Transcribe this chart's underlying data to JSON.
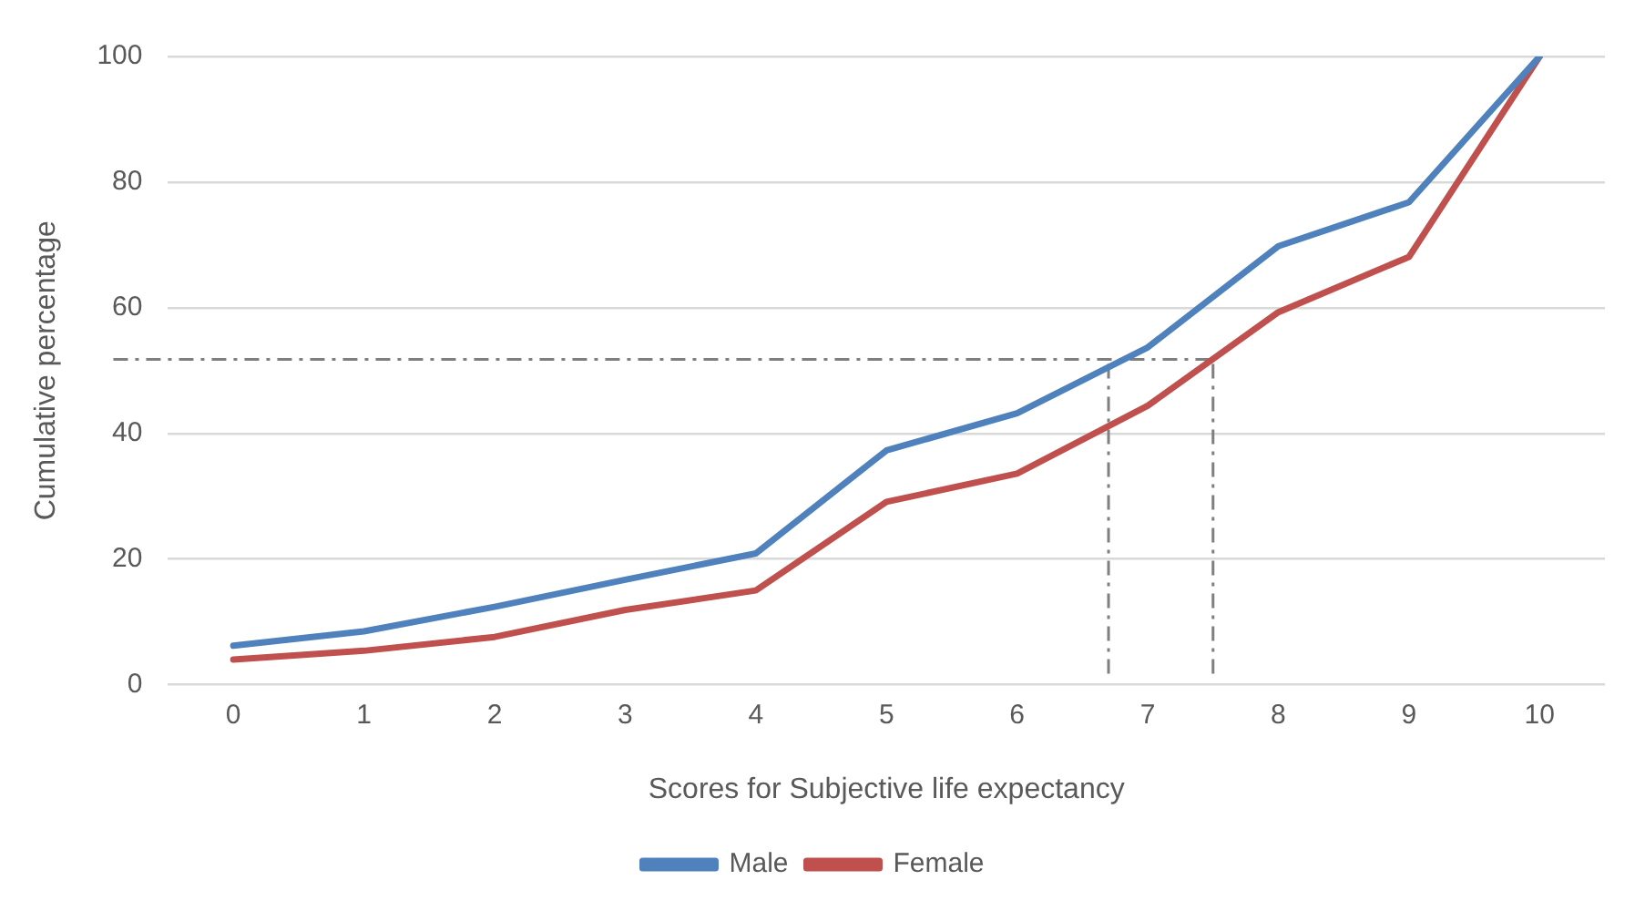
{
  "chart_data": {
    "type": "line",
    "xlabel": "Scores for Subjective life expectancy",
    "ylabel": "Cumulative percentage",
    "x": [
      0,
      1,
      2,
      3,
      4,
      5,
      6,
      7,
      8,
      9,
      10
    ],
    "xlim": [
      -0.5,
      10.5
    ],
    "xticks": [
      0,
      1,
      2,
      3,
      4,
      5,
      6,
      7,
      8,
      9,
      10
    ],
    "ylim": [
      0,
      100
    ],
    "yticks": [
      0,
      20,
      40,
      60,
      80,
      100
    ],
    "grid": "y",
    "legend": "bottom",
    "marker": "none",
    "line_style": "solid",
    "series": [
      {
        "name": "Male",
        "color": "#4f81bd",
        "values": [
          6.2,
          8.5,
          12.4,
          16.7,
          20.9,
          37.3,
          43.2,
          53.7,
          69.8,
          76.8,
          100
        ]
      },
      {
        "name": "Female",
        "color": "#c0504d",
        "values": [
          4,
          5.4,
          7.6,
          11.9,
          15,
          29.1,
          33.6,
          44.4,
          59.3,
          68.1,
          100
        ]
      }
    ],
    "ref_lines": [
      {
        "axis": "y",
        "value": 51.8,
        "color": "#7f7f7f",
        "line_style": "dashed"
      },
      {
        "axis": "x",
        "value": 6.7,
        "color": "#7f7f7f",
        "line_style": "dashed"
      },
      {
        "axis": "x",
        "value": 7.5,
        "color": "#7f7f7f",
        "line_style": "dashed"
      }
    ]
  }
}
